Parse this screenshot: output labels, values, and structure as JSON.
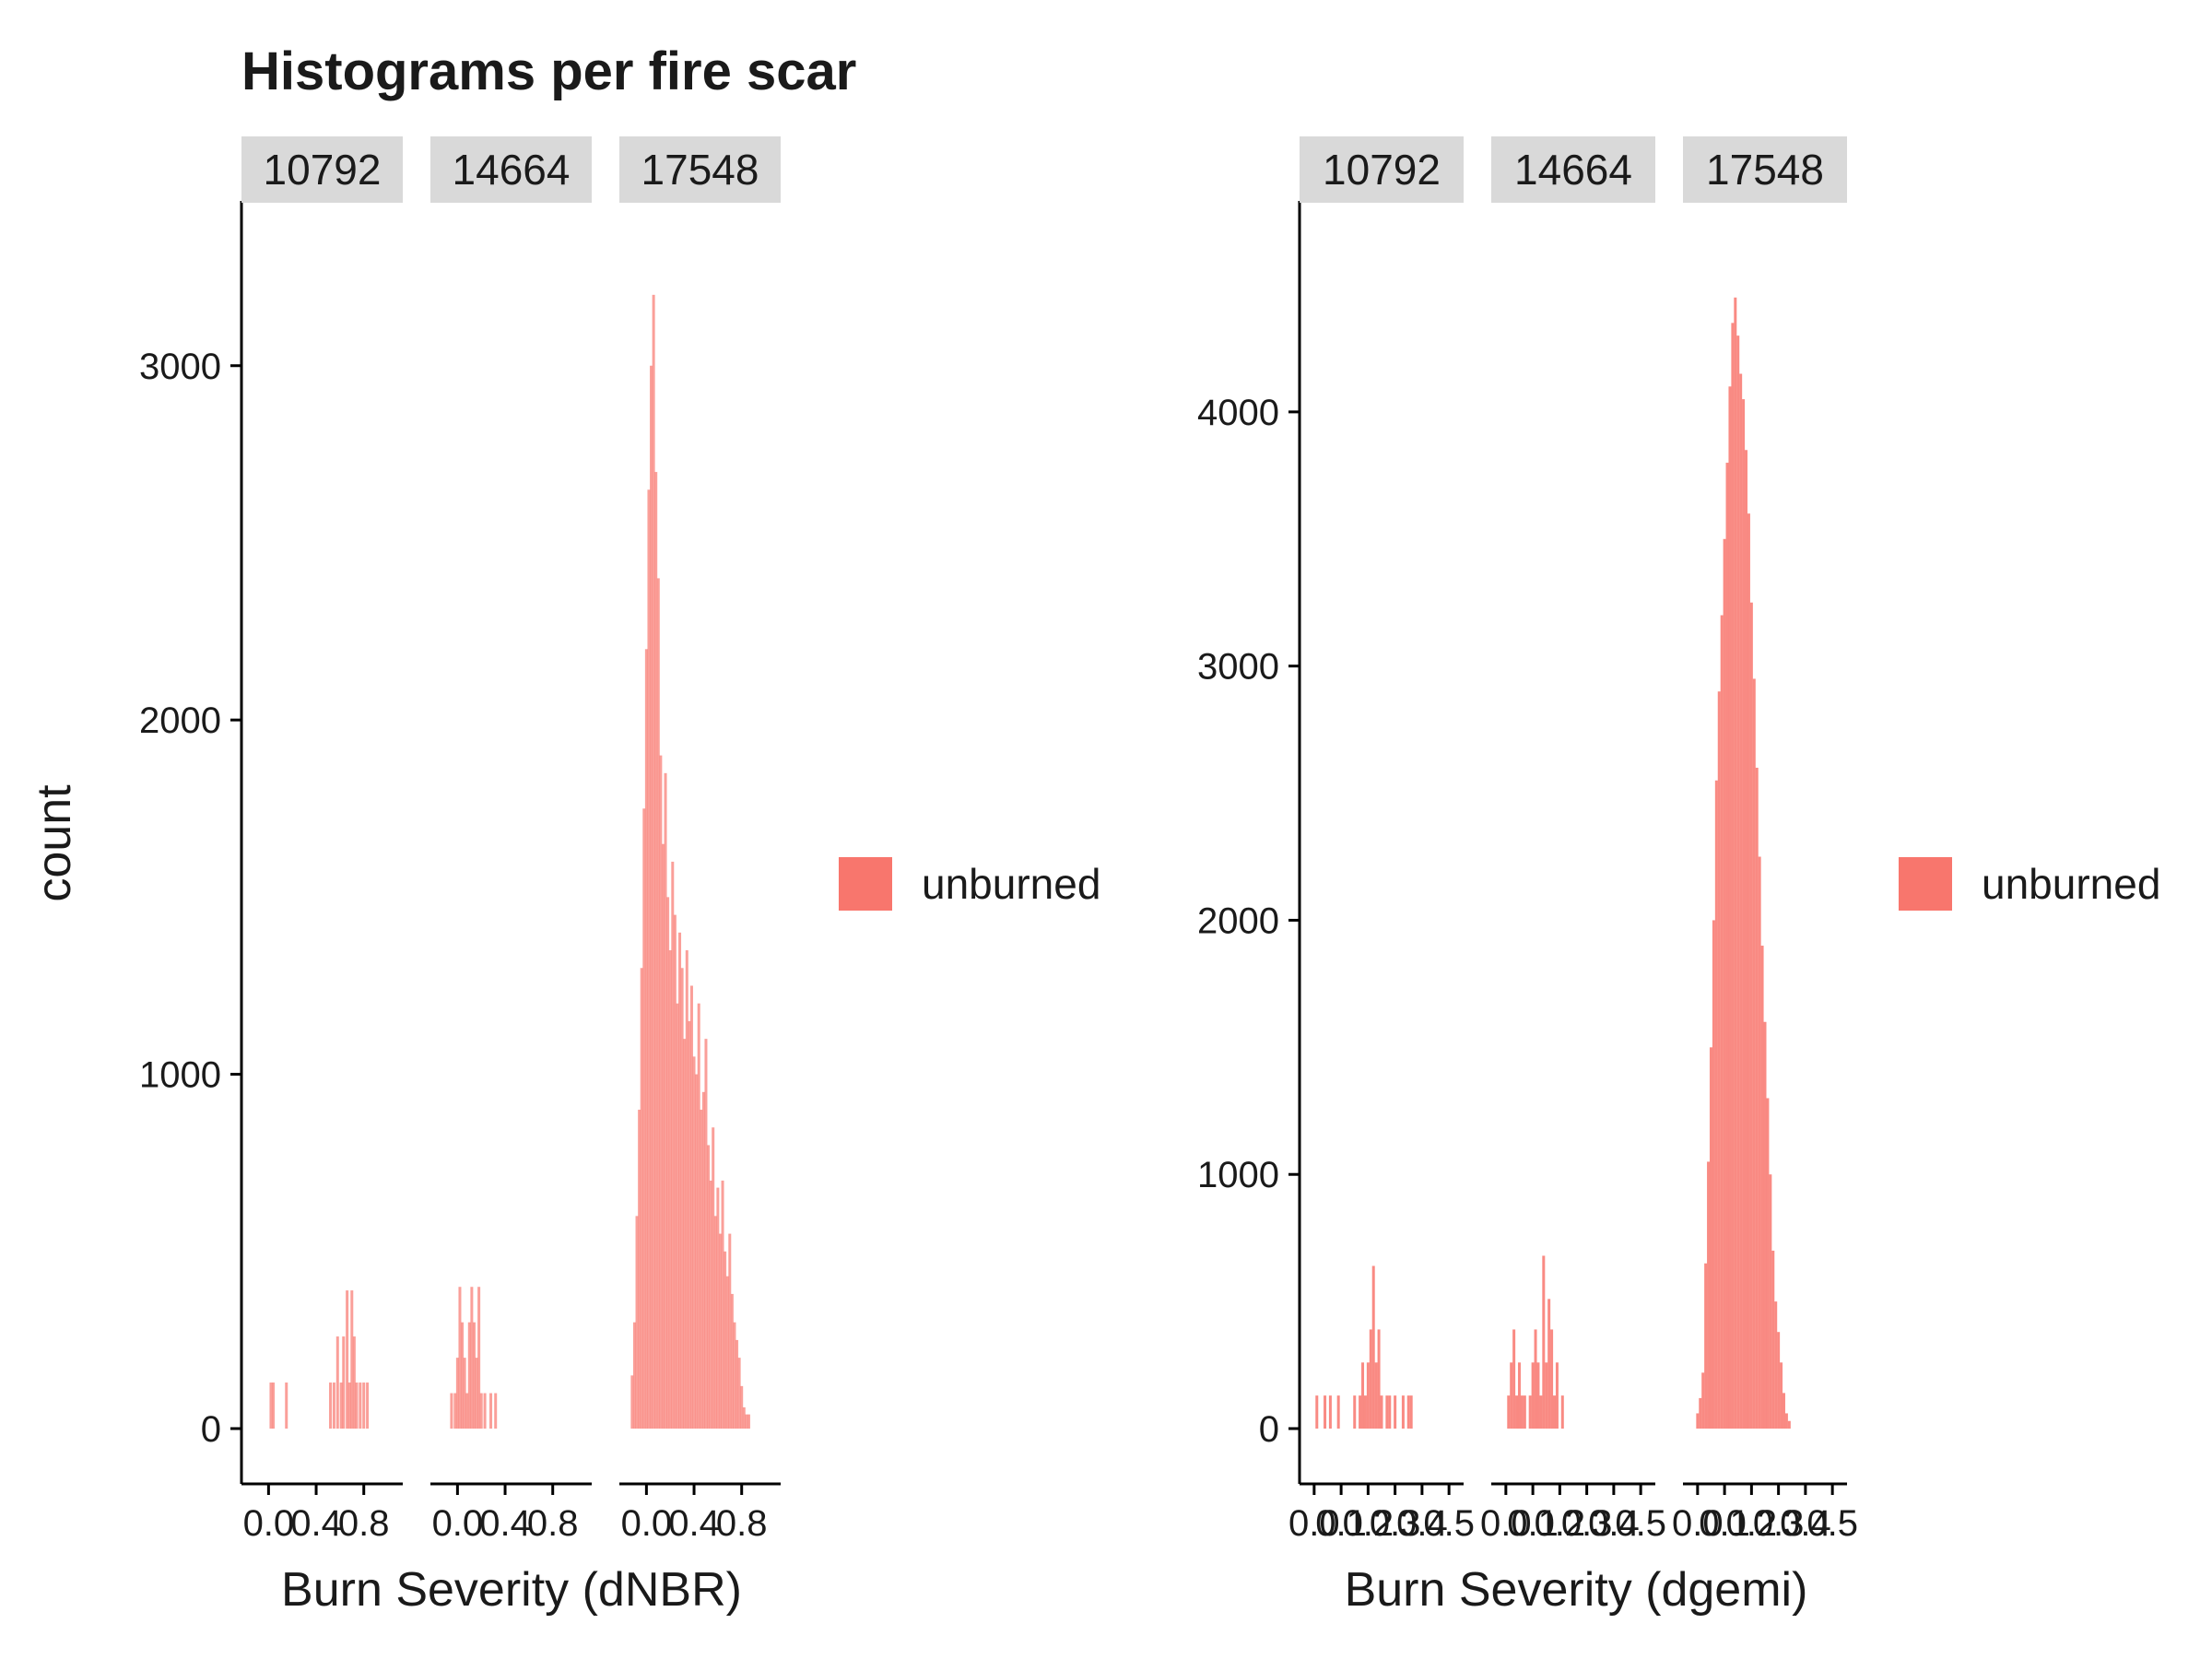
{
  "title": "Histograms per fire scar",
  "chart_data": [
    {
      "type": "bar",
      "variant": "faceted-histogram",
      "xlabel": "Burn Severity (dNBR)",
      "ylabel": "count",
      "ylim": [
        0,
        3300
      ],
      "yticks": [
        0,
        1000,
        2000,
        3000
      ],
      "xticks": [
        "0.0",
        "0.4",
        "0.8"
      ],
      "xtick_values": [
        0.0,
        0.4,
        0.8
      ],
      "xlim": [
        -0.15,
        1.05
      ],
      "fill": "#f8766d",
      "fill_opacity": 0.7,
      "legend": {
        "label": "unburned",
        "position": "right"
      },
      "facets": [
        {
          "label": "10792",
          "bars": [
            {
              "x": 0.02,
              "y": 130
            },
            {
              "x": 0.04,
              "y": 130
            },
            {
              "x": 0.15,
              "y": 130
            },
            {
              "x": 0.52,
              "y": 130
            },
            {
              "x": 0.55,
              "y": 130
            },
            {
              "x": 0.58,
              "y": 260
            },
            {
              "x": 0.61,
              "y": 130
            },
            {
              "x": 0.63,
              "y": 260
            },
            {
              "x": 0.66,
              "y": 390
            },
            {
              "x": 0.68,
              "y": 130
            },
            {
              "x": 0.7,
              "y": 390
            },
            {
              "x": 0.72,
              "y": 260
            },
            {
              "x": 0.74,
              "y": 130
            },
            {
              "x": 0.77,
              "y": 130
            },
            {
              "x": 0.8,
              "y": 130
            },
            {
              "x": 0.83,
              "y": 130
            }
          ]
        },
        {
          "label": "14664",
          "bars": [
            {
              "x": -0.05,
              "y": 100
            },
            {
              "x": -0.02,
              "y": 100
            },
            {
              "x": 0.0,
              "y": 200
            },
            {
              "x": 0.02,
              "y": 400
            },
            {
              "x": 0.04,
              "y": 300
            },
            {
              "x": 0.06,
              "y": 200
            },
            {
              "x": 0.08,
              "y": 100
            },
            {
              "x": 0.1,
              "y": 300
            },
            {
              "x": 0.12,
              "y": 400
            },
            {
              "x": 0.14,
              "y": 300
            },
            {
              "x": 0.16,
              "y": 200
            },
            {
              "x": 0.18,
              "y": 400
            },
            {
              "x": 0.2,
              "y": 100
            },
            {
              "x": 0.23,
              "y": 100
            },
            {
              "x": 0.28,
              "y": 100
            },
            {
              "x": 0.32,
              "y": 100
            }
          ]
        },
        {
          "label": "17548",
          "bars": [
            {
              "x": -0.12,
              "y": 150
            },
            {
              "x": -0.1,
              "y": 300
            },
            {
              "x": -0.08,
              "y": 600
            },
            {
              "x": -0.06,
              "y": 900
            },
            {
              "x": -0.04,
              "y": 1300
            },
            {
              "x": -0.02,
              "y": 1750
            },
            {
              "x": 0.0,
              "y": 2200
            },
            {
              "x": 0.02,
              "y": 2650
            },
            {
              "x": 0.04,
              "y": 3000
            },
            {
              "x": 0.06,
              "y": 3200
            },
            {
              "x": 0.08,
              "y": 2700
            },
            {
              "x": 0.1,
              "y": 2400
            },
            {
              "x": 0.12,
              "y": 1900
            },
            {
              "x": 0.14,
              "y": 1650
            },
            {
              "x": 0.16,
              "y": 1850
            },
            {
              "x": 0.18,
              "y": 1500
            },
            {
              "x": 0.2,
              "y": 1350
            },
            {
              "x": 0.22,
              "y": 1600
            },
            {
              "x": 0.24,
              "y": 1450
            },
            {
              "x": 0.26,
              "y": 1200
            },
            {
              "x": 0.28,
              "y": 1400
            },
            {
              "x": 0.3,
              "y": 1300
            },
            {
              "x": 0.32,
              "y": 1100
            },
            {
              "x": 0.34,
              "y": 1350
            },
            {
              "x": 0.36,
              "y": 1150
            },
            {
              "x": 0.38,
              "y": 1250
            },
            {
              "x": 0.4,
              "y": 1050
            },
            {
              "x": 0.42,
              "y": 1000
            },
            {
              "x": 0.44,
              "y": 1200
            },
            {
              "x": 0.46,
              "y": 900
            },
            {
              "x": 0.48,
              "y": 950
            },
            {
              "x": 0.5,
              "y": 1100
            },
            {
              "x": 0.52,
              "y": 800
            },
            {
              "x": 0.54,
              "y": 700
            },
            {
              "x": 0.56,
              "y": 850
            },
            {
              "x": 0.58,
              "y": 600
            },
            {
              "x": 0.6,
              "y": 680
            },
            {
              "x": 0.62,
              "y": 550
            },
            {
              "x": 0.64,
              "y": 700
            },
            {
              "x": 0.66,
              "y": 500
            },
            {
              "x": 0.68,
              "y": 430
            },
            {
              "x": 0.7,
              "y": 550
            },
            {
              "x": 0.72,
              "y": 380
            },
            {
              "x": 0.74,
              "y": 300
            },
            {
              "x": 0.76,
              "y": 250
            },
            {
              "x": 0.78,
              "y": 200
            },
            {
              "x": 0.8,
              "y": 120
            },
            {
              "x": 0.82,
              "y": 60
            },
            {
              "x": 0.84,
              "y": 40
            },
            {
              "x": 0.86,
              "y": 40
            }
          ]
        }
      ]
    },
    {
      "type": "bar",
      "variant": "faceted-histogram",
      "xlabel": "Burn Severity (dgemi)",
      "ylabel": "",
      "ylim": [
        0,
        4600
      ],
      "yticks": [
        0,
        1000,
        2000,
        3000,
        4000
      ],
      "xticks": [
        "0.0",
        "0.1",
        "0.2",
        "0.3",
        "0.4",
        "0.5"
      ],
      "xtick_values": [
        0.0,
        0.1,
        0.2,
        0.3,
        0.4,
        0.5
      ],
      "xlim": [
        -0.02,
        0.52
      ],
      "fill": "#f8766d",
      "fill_opacity": 0.85,
      "legend": {
        "label": "unburned",
        "position": "right"
      },
      "facets": [
        {
          "label": "10792",
          "bars": [
            {
              "x": 0.01,
              "y": 130
            },
            {
              "x": 0.04,
              "y": 130
            },
            {
              "x": 0.06,
              "y": 130
            },
            {
              "x": 0.09,
              "y": 130
            },
            {
              "x": 0.15,
              "y": 130
            },
            {
              "x": 0.17,
              "y": 130
            },
            {
              "x": 0.18,
              "y": 260
            },
            {
              "x": 0.19,
              "y": 130
            },
            {
              "x": 0.2,
              "y": 260
            },
            {
              "x": 0.21,
              "y": 390
            },
            {
              "x": 0.22,
              "y": 640
            },
            {
              "x": 0.23,
              "y": 260
            },
            {
              "x": 0.24,
              "y": 390
            },
            {
              "x": 0.25,
              "y": 130
            },
            {
              "x": 0.27,
              "y": 130
            },
            {
              "x": 0.28,
              "y": 130
            },
            {
              "x": 0.3,
              "y": 130
            },
            {
              "x": 0.33,
              "y": 130
            },
            {
              "x": 0.35,
              "y": 130
            },
            {
              "x": 0.36,
              "y": 130
            }
          ]
        },
        {
          "label": "14664",
          "bars": [
            {
              "x": 0.01,
              "y": 130
            },
            {
              "x": 0.02,
              "y": 260
            },
            {
              "x": 0.03,
              "y": 390
            },
            {
              "x": 0.04,
              "y": 130
            },
            {
              "x": 0.05,
              "y": 260
            },
            {
              "x": 0.06,
              "y": 130
            },
            {
              "x": 0.07,
              "y": 130
            },
            {
              "x": 0.09,
              "y": 130
            },
            {
              "x": 0.1,
              "y": 260
            },
            {
              "x": 0.11,
              "y": 390
            },
            {
              "x": 0.12,
              "y": 260
            },
            {
              "x": 0.13,
              "y": 130
            },
            {
              "x": 0.14,
              "y": 680
            },
            {
              "x": 0.15,
              "y": 260
            },
            {
              "x": 0.16,
              "y": 510
            },
            {
              "x": 0.17,
              "y": 390
            },
            {
              "x": 0.18,
              "y": 130
            },
            {
              "x": 0.19,
              "y": 260
            },
            {
              "x": 0.21,
              "y": 130
            }
          ]
        },
        {
          "label": "17548",
          "bars": [
            {
              "x": 0.0,
              "y": 60
            },
            {
              "x": 0.01,
              "y": 120
            },
            {
              "x": 0.02,
              "y": 220
            },
            {
              "x": 0.03,
              "y": 650
            },
            {
              "x": 0.04,
              "y": 1050
            },
            {
              "x": 0.05,
              "y": 1500
            },
            {
              "x": 0.06,
              "y": 2000
            },
            {
              "x": 0.07,
              "y": 2550
            },
            {
              "x": 0.08,
              "y": 2900
            },
            {
              "x": 0.09,
              "y": 3200
            },
            {
              "x": 0.1,
              "y": 3500
            },
            {
              "x": 0.11,
              "y": 3800
            },
            {
              "x": 0.12,
              "y": 4100
            },
            {
              "x": 0.13,
              "y": 4350
            },
            {
              "x": 0.14,
              "y": 4450
            },
            {
              "x": 0.15,
              "y": 4300
            },
            {
              "x": 0.16,
              "y": 4150
            },
            {
              "x": 0.17,
              "y": 4050
            },
            {
              "x": 0.18,
              "y": 3850
            },
            {
              "x": 0.19,
              "y": 3600
            },
            {
              "x": 0.2,
              "y": 3250
            },
            {
              "x": 0.21,
              "y": 2950
            },
            {
              "x": 0.22,
              "y": 2600
            },
            {
              "x": 0.23,
              "y": 2250
            },
            {
              "x": 0.24,
              "y": 1900
            },
            {
              "x": 0.25,
              "y": 1600
            },
            {
              "x": 0.26,
              "y": 1300
            },
            {
              "x": 0.27,
              "y": 1000
            },
            {
              "x": 0.28,
              "y": 700
            },
            {
              "x": 0.29,
              "y": 500
            },
            {
              "x": 0.3,
              "y": 380
            },
            {
              "x": 0.31,
              "y": 260
            },
            {
              "x": 0.32,
              "y": 140
            },
            {
              "x": 0.33,
              "y": 60
            },
            {
              "x": 0.34,
              "y": 30
            }
          ]
        }
      ]
    }
  ]
}
